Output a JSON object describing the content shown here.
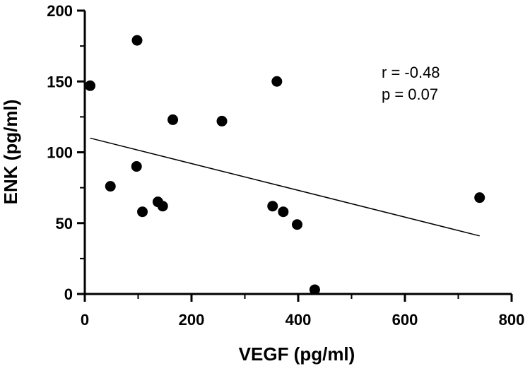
{
  "chart_data": {
    "type": "scatter",
    "title": "",
    "xlabel": "VEGF (pg/ml)",
    "ylabel": "ENK (pg/ml)",
    "xlim": [
      0,
      800
    ],
    "ylim": [
      0,
      200
    ],
    "x_ticks": [
      0,
      200,
      400,
      600,
      800
    ],
    "y_ticks": [
      0,
      50,
      100,
      150,
      200
    ],
    "x_minor_step": 100,
    "y_minor_step": 25,
    "grid": false,
    "series": [
      {
        "name": "samples",
        "points": [
          {
            "x": 10,
            "y": 147
          },
          {
            "x": 98,
            "y": 179
          },
          {
            "x": 48,
            "y": 76
          },
          {
            "x": 97,
            "y": 90
          },
          {
            "x": 108,
            "y": 58
          },
          {
            "x": 137,
            "y": 65
          },
          {
            "x": 146,
            "y": 62
          },
          {
            "x": 165,
            "y": 123
          },
          {
            "x": 257,
            "y": 122
          },
          {
            "x": 352,
            "y": 62
          },
          {
            "x": 360,
            "y": 150
          },
          {
            "x": 372,
            "y": 58
          },
          {
            "x": 398,
            "y": 49
          },
          {
            "x": 431,
            "y": 3
          },
          {
            "x": 740,
            "y": 68
          }
        ]
      }
    ],
    "regression_line": {
      "x1": 10,
      "y1": 110,
      "x2": 740,
      "y2": 41
    },
    "annotations": {
      "r": "r = -0.48",
      "p": "p = 0.07"
    }
  }
}
